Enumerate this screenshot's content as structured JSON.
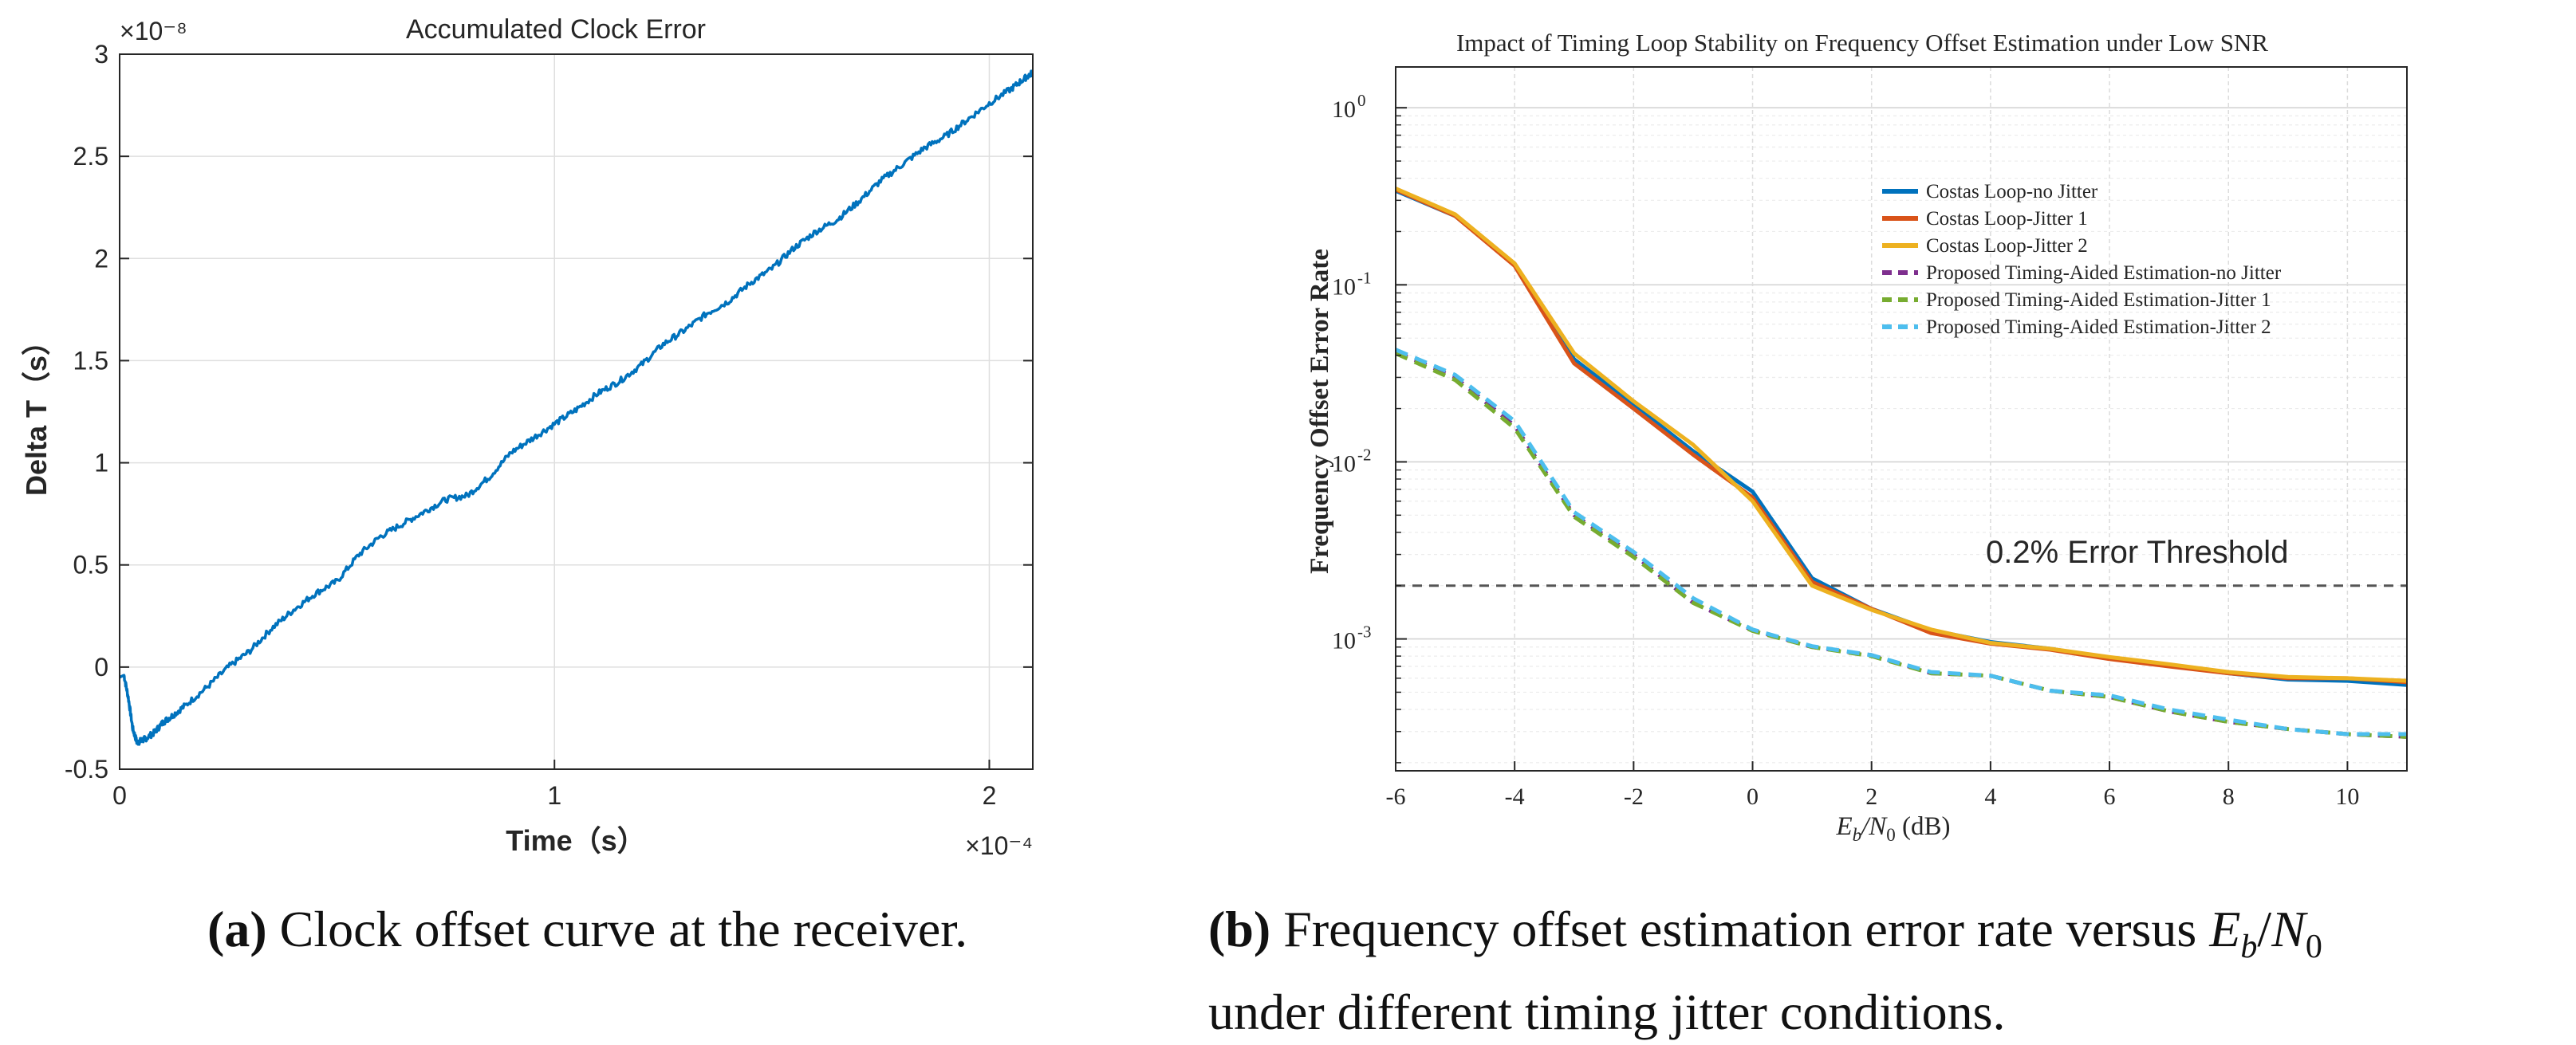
{
  "chart_data": [
    {
      "type": "line",
      "title": "Accumulated Clock Error",
      "xlabel": "Time（s）",
      "ylabel": "Delta T（s）",
      "x_exponent": "×10⁻⁴",
      "y_exponent": "×10⁻⁸",
      "xlim": [
        0,
        2.1
      ],
      "ylim": [
        -0.5,
        3
      ],
      "x_ticks": [
        0,
        1,
        2
      ],
      "x_tick_labels": [
        "0",
        "1",
        "2"
      ],
      "y_ticks": [
        -0.5,
        0,
        0.5,
        1,
        1.5,
        2,
        2.5,
        3
      ],
      "y_tick_labels": [
        "-0.5",
        "0",
        "0.5",
        "1",
        "1.5",
        "2",
        "2.5",
        "3"
      ],
      "grid": true,
      "color": "#0072BD",
      "series": [
        {
          "name": "Accumulated Clock Error",
          "x": [
            0,
            0.01,
            0.02,
            0.03,
            0.04,
            0.05,
            0.06,
            0.08,
            0.1,
            0.12,
            0.15,
            0.2,
            0.25,
            0.3,
            0.35,
            0.4,
            0.45,
            0.5,
            0.55,
            0.6,
            0.65,
            0.7,
            0.75,
            0.8,
            0.85,
            0.9,
            0.95,
            1.0,
            1.05,
            1.1,
            1.15,
            1.2,
            1.25,
            1.3,
            1.35,
            1.4,
            1.45,
            1.5,
            1.55,
            1.6,
            1.65,
            1.7,
            1.75,
            1.8,
            1.85,
            1.9,
            1.95,
            2.0,
            2.05,
            2.08,
            2.1
          ],
          "y": [
            -0.05,
            -0.04,
            -0.15,
            -0.3,
            -0.37,
            -0.36,
            -0.35,
            -0.32,
            -0.27,
            -0.24,
            -0.19,
            -0.1,
            0.0,
            0.08,
            0.19,
            0.28,
            0.36,
            0.42,
            0.55,
            0.64,
            0.7,
            0.76,
            0.82,
            0.84,
            0.93,
            1.05,
            1.12,
            1.19,
            1.26,
            1.34,
            1.4,
            1.48,
            1.58,
            1.65,
            1.73,
            1.79,
            1.88,
            1.95,
            2.05,
            2.13,
            2.19,
            2.28,
            2.38,
            2.46,
            2.54,
            2.6,
            2.68,
            2.76,
            2.83,
            2.88,
            2.91
          ]
        }
      ]
    },
    {
      "type": "line",
      "title": "Impact of Timing Loop Stability on Frequency Offset Estimation under Low SNR",
      "xlabel_main": "E",
      "xlabel_sub": "b",
      "xlabel_mid": "/N",
      "xlabel_sub2": "0",
      "xlabel_unit": " (dB)",
      "ylabel": "Frequency Offset Error Rate",
      "y_scale": "log",
      "xlim": [
        -6,
        11
      ],
      "ylim": [
        0.00018,
        1.7
      ],
      "x_ticks": [
        -6,
        -4,
        -2,
        0,
        2,
        4,
        6,
        8,
        10
      ],
      "x_tick_labels": [
        "-6",
        "-4",
        "-2",
        "0",
        "2",
        "4",
        "6",
        "8",
        "10"
      ],
      "y_ticks": [
        0.001,
        0.01,
        0.1,
        1
      ],
      "y_tick_labels": [
        "10",
        "10",
        "10",
        "10"
      ],
      "y_tick_exponents": [
        "-3",
        "-2",
        "-1",
        "0"
      ],
      "grid": true,
      "legend_position": "upper-middle",
      "threshold": {
        "value": 0.002,
        "label": "0.2% Error Threshold",
        "color": "#555555"
      },
      "x": [
        -6,
        -5,
        -4,
        -3,
        -2,
        -1,
        0,
        1,
        2,
        3,
        4,
        5,
        6,
        7,
        8,
        9,
        10,
        11
      ],
      "series": [
        {
          "name": "Costas Loop-no Jitter",
          "color": "#0072BD",
          "dash": "solid",
          "values": [
            0.34,
            0.245,
            0.13,
            0.038,
            0.021,
            0.0115,
            0.0068,
            0.0022,
            0.00148,
            0.00112,
            0.00096,
            0.00088,
            0.00078,
            0.00071,
            0.00064,
            0.00059,
            0.00058,
            0.00055
          ]
        },
        {
          "name": "Costas Loop-Jitter 1",
          "color": "#D95319",
          "dash": "solid",
          "values": [
            0.345,
            0.245,
            0.128,
            0.036,
            0.02,
            0.011,
            0.0063,
            0.0021,
            0.00148,
            0.00108,
            0.00094,
            0.00087,
            0.00077,
            0.0007,
            0.00064,
            0.0006,
            0.0006,
            0.00057
          ]
        },
        {
          "name": "Costas Loop-Jitter 2",
          "color": "#EDB120",
          "dash": "solid",
          "values": [
            0.35,
            0.25,
            0.132,
            0.041,
            0.022,
            0.0125,
            0.006,
            0.002,
            0.00146,
            0.00113,
            0.00095,
            0.00088,
            0.00079,
            0.00072,
            0.00065,
            0.00061,
            0.0006,
            0.00058
          ]
        },
        {
          "name": "Proposed Timing-Aided Estimation-no Jitter",
          "color": "#7E2F8E",
          "dash": "dashed",
          "values": [
            0.042,
            0.03,
            0.016,
            0.005,
            0.003,
            0.0016,
            0.00112,
            0.0009,
            0.00081,
            0.00064,
            0.00062,
            0.00051,
            0.00047,
            0.00039,
            0.00034,
            0.00031,
            0.00029,
            0.00028
          ]
        },
        {
          "name": "Proposed Timing-Aided Estimation-Jitter 1",
          "color": "#77AC30",
          "dash": "dashed",
          "values": [
            0.041,
            0.029,
            0.0155,
            0.0049,
            0.0029,
            0.0016,
            0.00111,
            0.0009,
            0.0008,
            0.00064,
            0.00062,
            0.00051,
            0.00047,
            0.00039,
            0.00034,
            0.00031,
            0.00029,
            0.00028
          ]
        },
        {
          "name": "Proposed Timing-Aided Estimation-Jitter 2",
          "color": "#4DBEEE",
          "dash": "dashed",
          "values": [
            0.043,
            0.031,
            0.017,
            0.0052,
            0.0031,
            0.0017,
            0.00113,
            0.00091,
            0.00081,
            0.00065,
            0.00062,
            0.00051,
            0.00048,
            0.0004,
            0.00035,
            0.00031,
            0.00029,
            0.00029
          ]
        }
      ]
    }
  ],
  "captions": {
    "a_label": "(a)",
    "a_text": " Clock offset curve at the receiver.",
    "b_label": "(b)",
    "b_text_1": " Frequency offset estimation error rate versus ",
    "b_math_E": "E",
    "b_math_b": "b",
    "b_math_slash": "/",
    "b_math_N": "N",
    "b_math_0": "0",
    "b_text_2": "under different timing jitter conditions."
  }
}
